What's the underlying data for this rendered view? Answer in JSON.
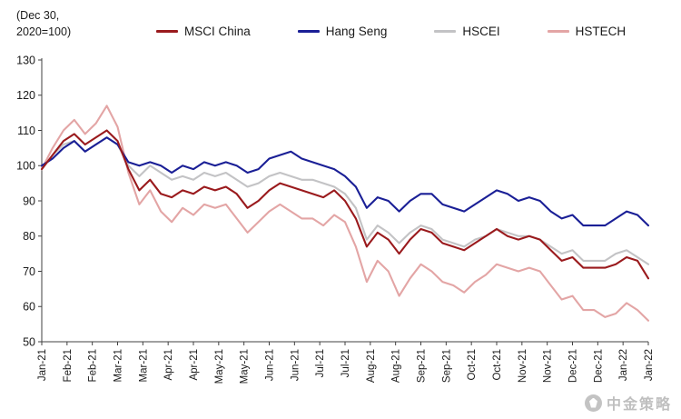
{
  "chart_data": {
    "type": "line",
    "annotation_lines": [
      "(Dec 30,",
      "2020=100)"
    ],
    "ylim": [
      50,
      130
    ],
    "yticks": [
      50,
      60,
      70,
      80,
      90,
      100,
      110,
      120,
      130
    ],
    "xtick_labels": [
      "Jan-21",
      "Feb-21",
      "Feb-21",
      "Mar-21",
      "Mar-21",
      "Apr-21",
      "Apr-21",
      "May-21",
      "May-21",
      "Jun-21",
      "Jun-21",
      "Jul-21",
      "Jul-21",
      "Aug-21",
      "Aug-21",
      "Sep-21",
      "Sep-21",
      "Oct-21",
      "Oct-21",
      "Nov-21",
      "Nov-21",
      "Dec-21",
      "Dec-21",
      "Jan-22",
      "Jan-22"
    ],
    "grid": false,
    "legend_position": "top",
    "series": [
      {
        "name": "MSCI China",
        "color": "#9a1a1d",
        "values": [
          99,
          103,
          107,
          109,
          106,
          108,
          110,
          107,
          99,
          93,
          96,
          92,
          91,
          93,
          92,
          94,
          93,
          94,
          92,
          88,
          90,
          93,
          95,
          94,
          93,
          92,
          91,
          93,
          90,
          85,
          77,
          81,
          79,
          75,
          79,
          82,
          81,
          78,
          77,
          76,
          78,
          80,
          82,
          80,
          79,
          80,
          79,
          76,
          73,
          74,
          71,
          71,
          71,
          72,
          74,
          73,
          68
        ]
      },
      {
        "name": "Hang Seng",
        "color": "#1a1f96",
        "values": [
          100,
          102,
          105,
          107,
          104,
          106,
          108,
          106,
          101,
          100,
          101,
          100,
          98,
          100,
          99,
          101,
          100,
          101,
          100,
          98,
          99,
          102,
          103,
          104,
          102,
          101,
          100,
          99,
          97,
          94,
          88,
          91,
          90,
          87,
          90,
          92,
          92,
          89,
          88,
          87,
          89,
          91,
          93,
          92,
          90,
          91,
          90,
          87,
          85,
          86,
          83,
          83,
          83,
          85,
          87,
          86,
          83
        ]
      },
      {
        "name": "HSCEI",
        "color": "#c3c3c5",
        "values": [
          99,
          103,
          106,
          107,
          104,
          106,
          108,
          106,
          100,
          97,
          100,
          98,
          96,
          97,
          96,
          98,
          97,
          98,
          96,
          94,
          95,
          97,
          98,
          97,
          96,
          96,
          95,
          94,
          92,
          88,
          79,
          83,
          81,
          78,
          81,
          83,
          82,
          79,
          78,
          77,
          79,
          80,
          82,
          81,
          80,
          80,
          79,
          77,
          75,
          76,
          73,
          73,
          73,
          75,
          76,
          74,
          72
        ]
      },
      {
        "name": "HSTECH",
        "color": "#e3a5a5",
        "values": [
          99,
          105,
          110,
          113,
          109,
          112,
          117,
          111,
          98,
          89,
          93,
          87,
          84,
          88,
          86,
          89,
          88,
          89,
          85,
          81,
          84,
          87,
          89,
          87,
          85,
          85,
          83,
          86,
          84,
          77,
          67,
          73,
          70,
          63,
          68,
          72,
          70,
          67,
          66,
          64,
          67,
          69,
          72,
          71,
          70,
          71,
          70,
          66,
          62,
          63,
          59,
          59,
          57,
          58,
          61,
          59,
          56
        ]
      }
    ]
  },
  "watermark": {
    "text": "中金策略"
  }
}
